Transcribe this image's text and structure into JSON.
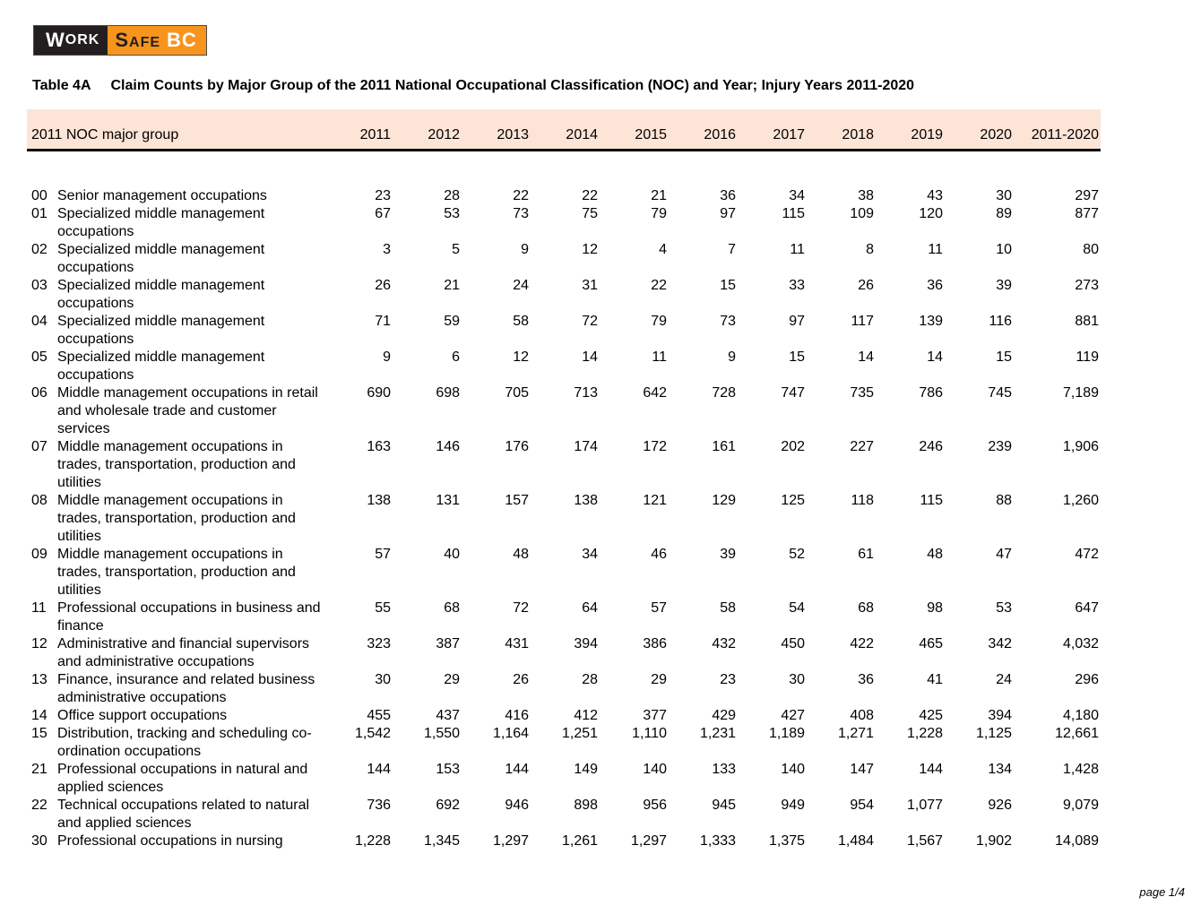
{
  "logo": {
    "work_first": "W",
    "work_rest": "ORK",
    "safe_first": "S",
    "safe_rest": "AFE",
    "bc": "BC"
  },
  "title": {
    "label": "Table 4A",
    "text": "Claim Counts by Major Group of the 2011 National Occupational Classification (NOC) and Year; Injury Years 2011-2020"
  },
  "colors": {
    "header_band": "#fce4d6",
    "logo_orange": "#f7941e",
    "logo_black": "#231f20"
  },
  "table": {
    "group_header": "2011 NOC major group",
    "year_headers": [
      "2011",
      "2012",
      "2013",
      "2014",
      "2015",
      "2016",
      "2017",
      "2018",
      "2019",
      "2020",
      "2011-2020"
    ],
    "rows": [
      {
        "code": "00",
        "desc": "Senior management occupations",
        "values": [
          "23",
          "28",
          "22",
          "22",
          "21",
          "36",
          "34",
          "38",
          "43",
          "30",
          "297"
        ]
      },
      {
        "code": "01",
        "desc": "Specialized middle management occupations",
        "values": [
          "67",
          "53",
          "73",
          "75",
          "79",
          "97",
          "115",
          "109",
          "120",
          "89",
          "877"
        ]
      },
      {
        "code": "02",
        "desc": "Specialized middle management occupations",
        "values": [
          "3",
          "5",
          "9",
          "12",
          "4",
          "7",
          "11",
          "8",
          "11",
          "10",
          "80"
        ]
      },
      {
        "code": "03",
        "desc": "Specialized middle management occupations",
        "values": [
          "26",
          "21",
          "24",
          "31",
          "22",
          "15",
          "33",
          "26",
          "36",
          "39",
          "273"
        ]
      },
      {
        "code": "04",
        "desc": "Specialized middle management occupations",
        "values": [
          "71",
          "59",
          "58",
          "72",
          "79",
          "73",
          "97",
          "117",
          "139",
          "116",
          "881"
        ]
      },
      {
        "code": "05",
        "desc": "Specialized middle management occupations",
        "values": [
          "9",
          "6",
          "12",
          "14",
          "11",
          "9",
          "15",
          "14",
          "14",
          "15",
          "119"
        ]
      },
      {
        "code": "06",
        "desc": "Middle management occupations in retail and wholesale trade and customer services",
        "values": [
          "690",
          "698",
          "705",
          "713",
          "642",
          "728",
          "747",
          "735",
          "786",
          "745",
          "7,189"
        ]
      },
      {
        "code": "07",
        "desc": "Middle management occupations in trades, transportation, production and utilities",
        "values": [
          "163",
          "146",
          "176",
          "174",
          "172",
          "161",
          "202",
          "227",
          "246",
          "239",
          "1,906"
        ]
      },
      {
        "code": "08",
        "desc": "Middle management occupations in trades, transportation, production and utilities",
        "values": [
          "138",
          "131",
          "157",
          "138",
          "121",
          "129",
          "125",
          "118",
          "115",
          "88",
          "1,260"
        ]
      },
      {
        "code": "09",
        "desc": "Middle management occupations in trades, transportation, production and utilities",
        "values": [
          "57",
          "40",
          "48",
          "34",
          "46",
          "39",
          "52",
          "61",
          "48",
          "47",
          "472"
        ]
      },
      {
        "code": "11",
        "desc": "Professional occupations in business and finance",
        "values": [
          "55",
          "68",
          "72",
          "64",
          "57",
          "58",
          "54",
          "68",
          "98",
          "53",
          "647"
        ]
      },
      {
        "code": "12",
        "desc": "Administrative and financial supervisors and administrative occupations",
        "values": [
          "323",
          "387",
          "431",
          "394",
          "386",
          "432",
          "450",
          "422",
          "465",
          "342",
          "4,032"
        ]
      },
      {
        "code": "13",
        "desc": "Finance, insurance and related business administrative occupations",
        "values": [
          "30",
          "29",
          "26",
          "28",
          "29",
          "23",
          "30",
          "36",
          "41",
          "24",
          "296"
        ]
      },
      {
        "code": "14",
        "desc": "Office support occupations",
        "values": [
          "455",
          "437",
          "416",
          "412",
          "377",
          "429",
          "427",
          "408",
          "425",
          "394",
          "4,180"
        ]
      },
      {
        "code": "15",
        "desc": "Distribution, tracking and scheduling co-ordination occupations",
        "values": [
          "1,542",
          "1,550",
          "1,164",
          "1,251",
          "1,110",
          "1,231",
          "1,189",
          "1,271",
          "1,228",
          "1,125",
          "12,661"
        ]
      },
      {
        "code": "21",
        "desc": "Professional occupations in natural and applied sciences",
        "values": [
          "144",
          "153",
          "144",
          "149",
          "140",
          "133",
          "140",
          "147",
          "144",
          "134",
          "1,428"
        ]
      },
      {
        "code": "22",
        "desc": "Technical occupations related to natural and applied sciences",
        "values": [
          "736",
          "692",
          "946",
          "898",
          "956",
          "945",
          "949",
          "954",
          "1,077",
          "926",
          "9,079"
        ]
      },
      {
        "code": "30",
        "desc": "Professional occupations in nursing",
        "values": [
          "1,228",
          "1,345",
          "1,297",
          "1,261",
          "1,297",
          "1,333",
          "1,375",
          "1,484",
          "1,567",
          "1,902",
          "14,089"
        ]
      }
    ]
  },
  "footer": {
    "page": "page 1/4"
  }
}
